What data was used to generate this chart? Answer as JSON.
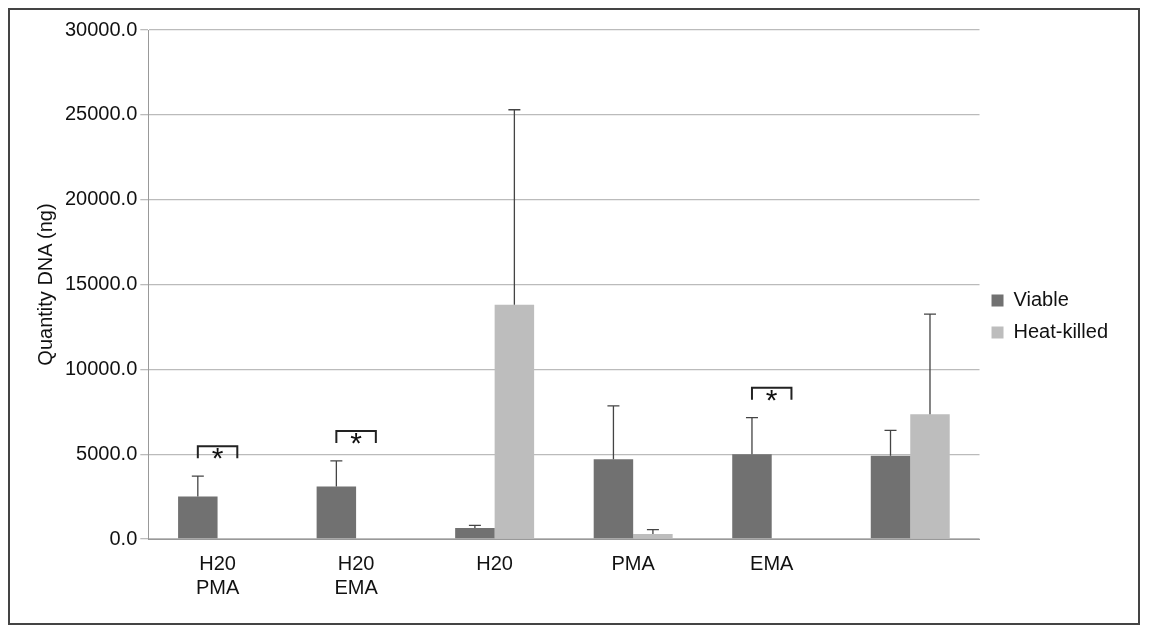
{
  "chart_data": {
    "type": "bar",
    "ylabel": "Quantity DNA (ng)",
    "categories": [
      "H20 PMA",
      "H20 EMA",
      "H20",
      "PMA",
      "EMA",
      null
    ],
    "series": [
      {
        "name": "Viable",
        "color": "#717171",
        "values": [
          2500,
          3100,
          650,
          4700,
          5000,
          4900
        ],
        "errors": [
          1200,
          1500,
          150,
          3150,
          2150,
          1500
        ]
      },
      {
        "name": "Heat-killed",
        "color": "#bdbdbd",
        "values": [
          50,
          20,
          13800,
          300,
          40,
          7350
        ],
        "errors": [
          null,
          null,
          11500,
          250,
          null,
          5900
        ]
      }
    ],
    "ylim": [
      0,
      30000
    ],
    "yticks": [
      {
        "value": 0,
        "label": "0.0"
      },
      {
        "value": 5000,
        "label": "5000.0"
      },
      {
        "value": 10000,
        "label": "10000.0"
      },
      {
        "value": 15000,
        "label": "15000.0"
      },
      {
        "value": 20000,
        "label": "20000.0"
      },
      {
        "value": 25000,
        "label": "25000.0"
      },
      {
        "value": 30000,
        "label": "30000.0"
      }
    ],
    "grid": "y",
    "legend": "right",
    "annotations": [
      "*",
      "*",
      "*"
    ]
  }
}
